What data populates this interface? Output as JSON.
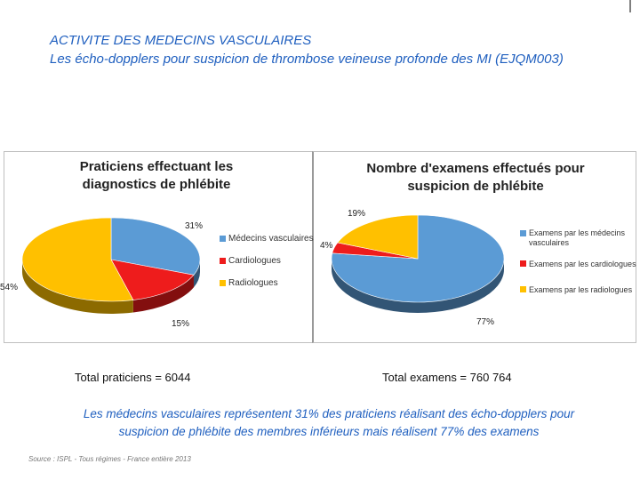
{
  "page": {
    "title_line1": "ACTIVITE DES MEDECINS VASCULAIRES",
    "title_line2": "Les écho-dopplers pour suspicion de thrombose veineuse profonde des MI (EJQM003)",
    "conclusion_line1": "Les médecins vasculaires représentent 31% des praticiens réalisant des écho-dopplers pour",
    "conclusion_line2": "suspicion de phlébite des membres inférieurs mais réalisent 77% des examens",
    "source": "Source : ISPL - Tous régimes - France entière 2013"
  },
  "colors": {
    "blue": "#5b9bd5",
    "red": "#ee1c1c",
    "yellow": "#ffc000",
    "title": "#1f5fbf"
  },
  "chart_data": [
    {
      "type": "pie",
      "title_line1": "Praticiens effectuant les",
      "title_line2": "diagnostics de phlébite",
      "categories": [
        "Médecins vasculaires",
        "Cardiologues",
        "Radiologues"
      ],
      "values": [
        31,
        15,
        54
      ],
      "labels": [
        "31%",
        "15%",
        "54%"
      ],
      "colors": [
        "#5b9bd5",
        "#ee1c1c",
        "#ffc000"
      ],
      "legend_placement": "right",
      "total_label": "Total praticiens = 6044"
    },
    {
      "type": "pie",
      "title_line1": "Nombre d'examens effectués pour",
      "title_line2": "suspicion de phlébite",
      "categories": [
        "Examens par les médecins vasculaires",
        "Examens par les cardiologues",
        "Examens par les radiologues"
      ],
      "values": [
        77,
        4,
        19
      ],
      "labels": [
        "77%",
        "4%",
        "19%"
      ],
      "colors": [
        "#5b9bd5",
        "#ee1c1c",
        "#ffc000"
      ],
      "legend_placement": "right",
      "total_label": "Total examens = 760 764"
    }
  ]
}
